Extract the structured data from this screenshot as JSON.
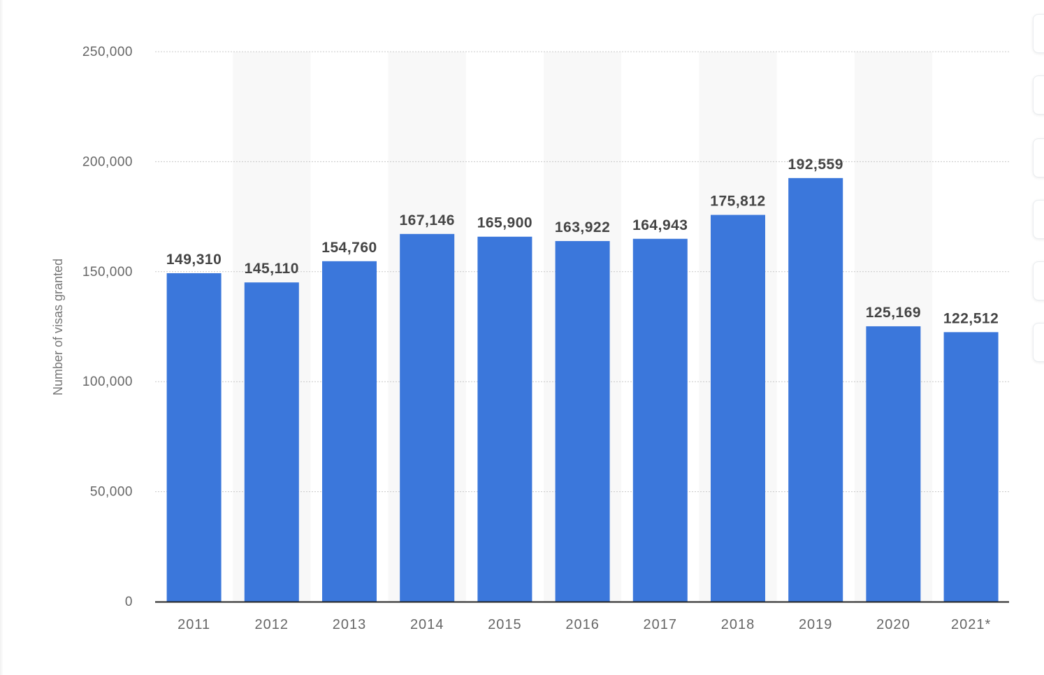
{
  "chart_data": {
    "type": "bar",
    "title": "",
    "xlabel": "",
    "ylabel": "Number of visas granted",
    "categories": [
      "2011",
      "2012",
      "2013",
      "2014",
      "2015",
      "2016",
      "2017",
      "2018",
      "2019",
      "2020",
      "2021*"
    ],
    "values": [
      149310,
      145110,
      154760,
      167146,
      165900,
      163922,
      164943,
      175812,
      192559,
      125169,
      122512
    ],
    "value_labels": [
      "149,310",
      "145,110",
      "154,760",
      "167,146",
      "165,900",
      "163,922",
      "164,943",
      "175,812",
      "192,559",
      "125,169",
      "122,512"
    ],
    "ylim": [
      0,
      250000
    ],
    "yticks": [
      0,
      50000,
      100000,
      150000,
      200000,
      250000
    ],
    "ytick_labels": [
      "0",
      "50,000",
      "100,000",
      "150,000",
      "200,000",
      "250,000"
    ],
    "grid": true,
    "bar_color": "#3b77db",
    "alt_band_color": "#f8f8f8",
    "grid_color": "#c8c8c8",
    "axis_color": "#222222",
    "tick_label_color": "#666666",
    "value_label_color": "#444444"
  }
}
